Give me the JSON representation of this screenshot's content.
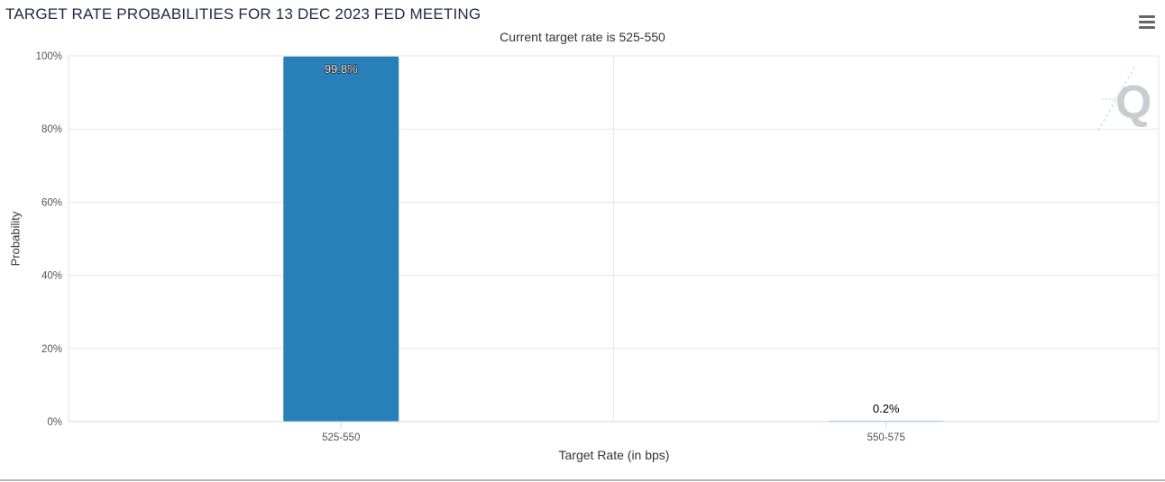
{
  "header": {
    "title": "TARGET RATE PROBABILITIES FOR 13 DEC 2023 FED MEETING",
    "subtitle": "Current target rate is 525-550",
    "menu_icon": "hamburger-menu-icon",
    "watermark_icon": "q-logo-icon"
  },
  "chart_data": {
    "type": "bar",
    "title": "TARGET RATE PROBABILITIES FOR 13 DEC 2023 FED MEETING",
    "subtitle": "Current target rate is 525-550",
    "categories": [
      "525-550",
      "550-575"
    ],
    "values": [
      99.8,
      0.2
    ],
    "data_labels": [
      "99.8%",
      "0.2%"
    ],
    "xlabel": "Target Rate (in bps)",
    "ylabel": "Probability",
    "ylim": [
      0,
      100
    ],
    "yticks": [
      "0%",
      "20%",
      "40%",
      "60%",
      "80%",
      "100%"
    ],
    "grid": true,
    "legend": "none",
    "bar_color": "#2980b9"
  }
}
